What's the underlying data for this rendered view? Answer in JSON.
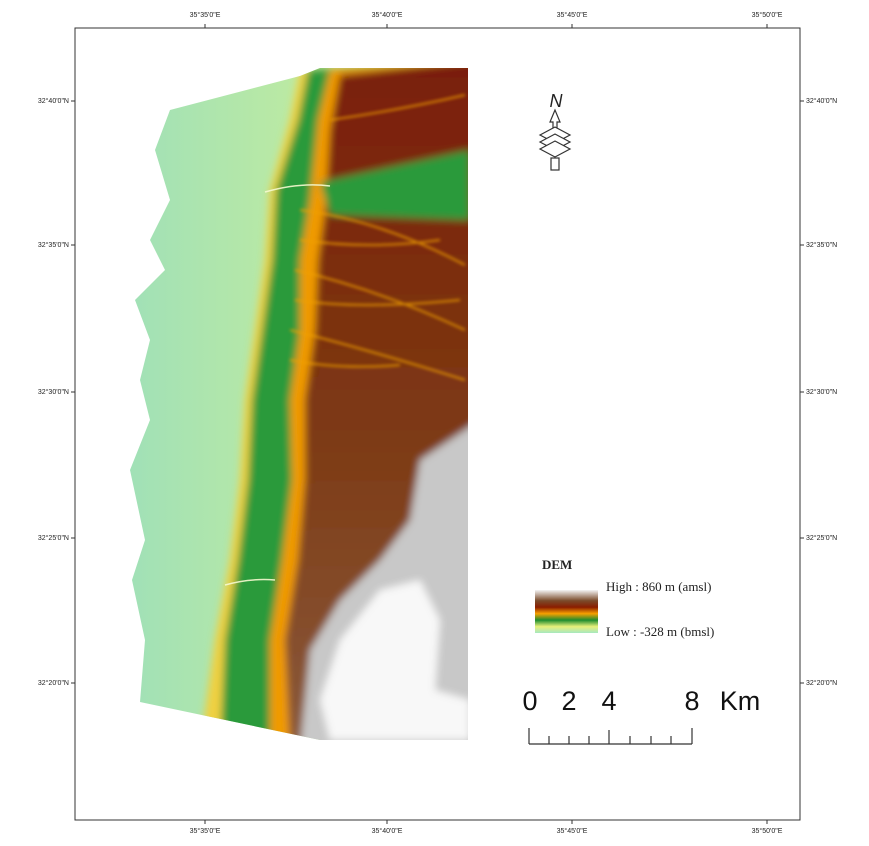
{
  "map": {
    "top_labels": [
      "35°35'0\"E",
      "35°40'0\"E",
      "35°45'0\"E",
      "35°50'0\"E"
    ],
    "bottom_labels": [
      "35°35'0\"E",
      "35°40'0\"E",
      "35°45'0\"E",
      "35°50'0\"E"
    ],
    "left_labels": [
      "32°40'0\"N",
      "32°35'0\"N",
      "32°30'0\"N",
      "32°25'0\"N",
      "32°20'0\"N"
    ],
    "right_labels": [
      "32°40'0\"N",
      "32°35'0\"N",
      "32°30'0\"N",
      "32°25'0\"N",
      "32°20'0\"N"
    ],
    "north": "N",
    "legend": {
      "title": "DEM",
      "high": "High : 860 m (amsl)",
      "low": "Low : -328 m (bmsl)"
    },
    "scale": {
      "labels": [
        "0",
        "2",
        "4",
        "8"
      ],
      "unit": "Km"
    }
  }
}
